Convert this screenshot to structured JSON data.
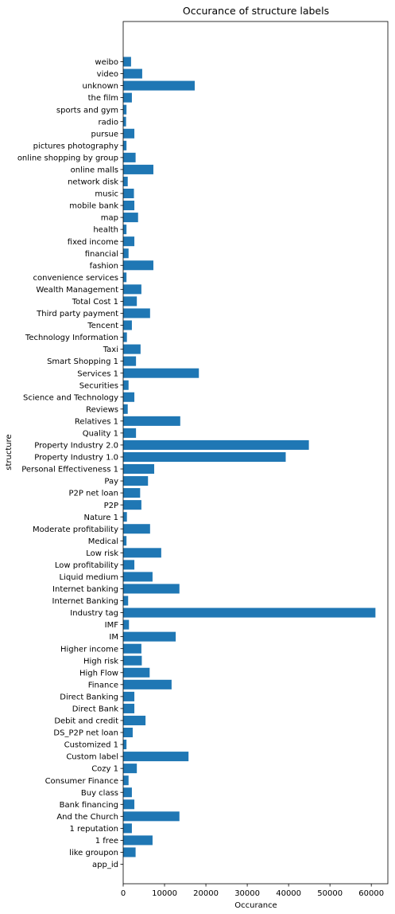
{
  "chart_data": {
    "type": "bar",
    "orientation": "horizontal",
    "title": "Occurance of structure labels",
    "xlabel": "Occurance",
    "ylabel": "structure",
    "xlim": [
      0,
      64000
    ],
    "xticks": [
      0,
      10000,
      20000,
      30000,
      40000,
      50000,
      60000
    ],
    "grid": false,
    "bar_color": "#1f77b4",
    "categories": [
      "app_id",
      "like groupon",
      "1 free",
      "1 reputation",
      "And the Church",
      "Bank financing",
      "Buy class",
      "Consumer Finance",
      "Cozy 1",
      "Custom label",
      "Customized 1",
      "DS_P2P net loan",
      "Debit and credit",
      "Direct Bank",
      "Direct Banking",
      "Finance",
      "High Flow",
      "High risk",
      "Higher income",
      "IM",
      "IMF",
      "Industry tag",
      "Internet Banking",
      "Internet banking",
      "Liquid medium",
      "Low profitability",
      "Low risk",
      "Medical",
      "Moderate profitability",
      "Nature 1",
      "P2P",
      "P2P net loan",
      "Pay",
      "Personal Effectiveness 1",
      "Property Industry 1.0",
      "Property Industry 2.0",
      "Quality 1",
      "Relatives 1",
      "Reviews",
      "Science and Technology",
      "Securities",
      "Services 1",
      "Smart Shopping 1",
      "Taxi",
      "Technology Information",
      "Tencent",
      "Third party payment",
      "Total Cost 1",
      "Wealth Management",
      "convenience services",
      "fashion",
      "financial",
      "fixed income",
      "health",
      "map",
      "mobile bank",
      "music",
      "network disk",
      "online malls",
      "online shopping by group",
      "pictures photography",
      "pursue",
      "radio",
      "sports and gym",
      "the film",
      "unknown",
      "video",
      "weibo"
    ],
    "values": [
      0,
      3000,
      7100,
      2100,
      13600,
      2700,
      2100,
      1300,
      3300,
      15800,
      800,
      2300,
      5400,
      2700,
      2700,
      11700,
      6400,
      4500,
      4400,
      12700,
      1400,
      61000,
      1200,
      13600,
      7100,
      2700,
      9200,
      800,
      6500,
      900,
      4400,
      4100,
      6000,
      7500,
      39300,
      44900,
      3100,
      13800,
      1100,
      2700,
      1300,
      18300,
      3100,
      4200,
      900,
      2100,
      6500,
      3300,
      4400,
      800,
      7300,
      1300,
      2700,
      800,
      3600,
      2700,
      2600,
      1100,
      7300,
      3000,
      800,
      2700,
      700,
      800,
      2100,
      17300,
      4600,
      1900
    ]
  }
}
